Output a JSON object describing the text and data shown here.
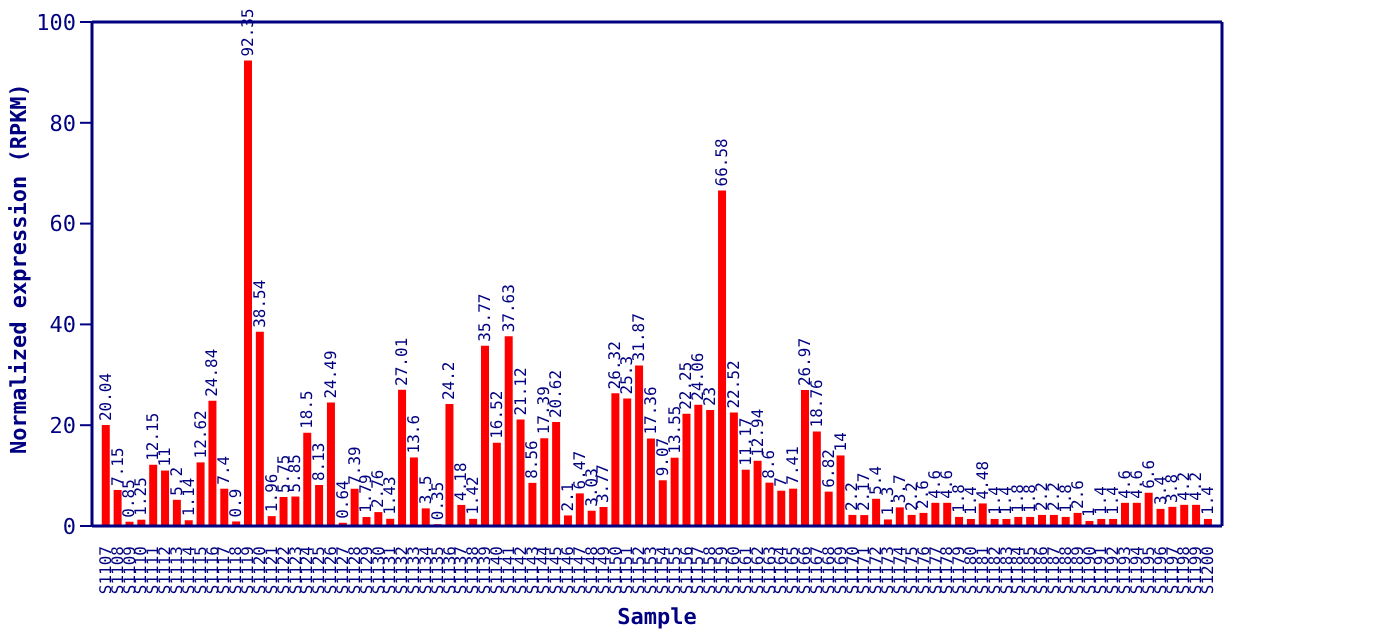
{
  "chart_data": {
    "type": "bar",
    "xlabel": "Sample",
    "ylabel": "Normalized expression (RPKM)",
    "categories": [
      "S1107",
      "S1108",
      "S1109",
      "S1110",
      "S1111",
      "S1112",
      "S1113",
      "S1114",
      "S1115",
      "S1116",
      "S1117",
      "S1118",
      "S1119",
      "S1120",
      "S1121",
      "S1122",
      "S1123",
      "S1124",
      "S1125",
      "S1126",
      "S1127",
      "S1128",
      "S1129",
      "S1130",
      "S1131",
      "S1132",
      "S1133",
      "S1134",
      "S1135",
      "S1136",
      "S1137",
      "S1138",
      "S1139",
      "S1140",
      "S1141",
      "S1142",
      "S1143",
      "S1144",
      "S1145",
      "S1146",
      "S1147",
      "S1148",
      "S1149",
      "S1150",
      "S1151",
      "S1152",
      "S1153",
      "S1154",
      "S1155",
      "S1156",
      "S1157",
      "S1158",
      "S1159",
      "S1160",
      "S1161",
      "S1162",
      "S1163",
      "S1164",
      "S1165",
      "S1166",
      "S1167",
      "S1168",
      "S1169",
      "S1170",
      "S1171",
      "S1172",
      "S1173",
      "S1174",
      "S1175",
      "S1176",
      "S1177",
      "S1178",
      "S1179",
      "S1180",
      "S1181",
      "S1182",
      "S1183",
      "S1184",
      "S1185",
      "S1186",
      "S1187",
      "S1188",
      "S1189",
      "S1190",
      "S1191",
      "S1192",
      "S1193",
      "S1194",
      "S1195",
      "S1196",
      "S1197",
      "S1198",
      "S1199",
      "S1200"
    ],
    "values": [
      20.04,
      7.15,
      0.85,
      1.25,
      12.15,
      11,
      5.2,
      1.14,
      12.62,
      24.84,
      7.4,
      0.9,
      92.35,
      38.54,
      1.96,
      5.75,
      5.85,
      18.5,
      8.13,
      24.49,
      0.64,
      7.39,
      1.79,
      2.76,
      1.43,
      27.01,
      13.6,
      3.5,
      0.35,
      24.2,
      4.18,
      1.42,
      35.77,
      16.52,
      37.63,
      21.12,
      8.56,
      17.39,
      20.62,
      2.1,
      6.47,
      3.03,
      3.77,
      26.32,
      25.3,
      31.87,
      17.36,
      9.07,
      13.55,
      22.25,
      24.06,
      23,
      66.58,
      22.52,
      11.17,
      12.94,
      8.6,
      7,
      7.41,
      26.97,
      18.76,
      6.82,
      14,
      2.2,
      2.17,
      5.4,
      1.3,
      3.7,
      2.2,
      2.6,
      4.6,
      4.6,
      1.8,
      1.4,
      4.48,
      1.4,
      1.4,
      1.8,
      1.8,
      2.2,
      2.2,
      1.8,
      2.6,
      1.0,
      1.4,
      1.4,
      4.6,
      4.6,
      6.6,
      3.4,
      3.8,
      4.2,
      4.2,
      1.4
    ],
    "color": "#ff0000",
    "ylim": [
      0,
      100
    ],
    "yticks": [
      0,
      20,
      40,
      60,
      80,
      100
    ],
    "data_labels": true
  }
}
